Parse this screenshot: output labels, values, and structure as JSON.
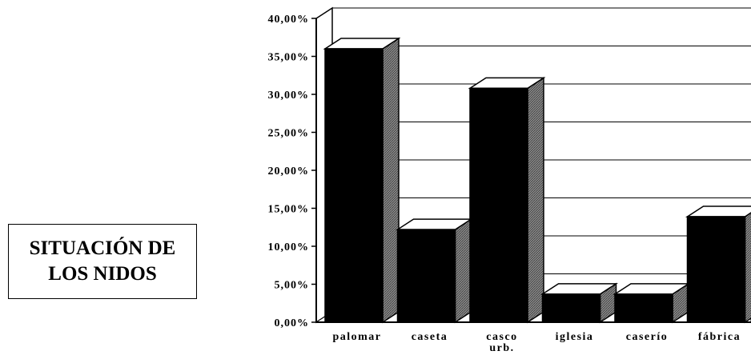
{
  "chart_data": {
    "type": "bar",
    "title": "SITUACIÓN DE LOS NIDOS",
    "title_lines": [
      "SITUACIÓN DE",
      "LOS NIDOS"
    ],
    "categories": [
      "palomar",
      "caseta",
      "casco urb.",
      "iglesia",
      "caserío",
      "fábrica"
    ],
    "category_lines": [
      [
        "palomar"
      ],
      [
        "caseta"
      ],
      [
        "casco",
        "urb."
      ],
      [
        "iglesia"
      ],
      [
        "caserío"
      ],
      [
        "fábrica"
      ]
    ],
    "values": [
      36.0,
      12.2,
      30.8,
      3.7,
      3.7,
      13.9
    ],
    "ylim": [
      0,
      40
    ],
    "yticks": [
      0,
      5,
      10,
      15,
      20,
      25,
      30,
      35,
      40
    ],
    "ytick_labels": [
      "0,00%",
      "5,00%",
      "10,00%",
      "15,00%",
      "20,00%",
      "25,00%",
      "30,00%",
      "35,00%",
      "40,00%"
    ],
    "grid": true,
    "style": "3d",
    "colors": {
      "bar_front": "#000000",
      "bar_top": "#ffffff",
      "bar_side": "#8a8a8a",
      "grid": "#000000"
    }
  }
}
